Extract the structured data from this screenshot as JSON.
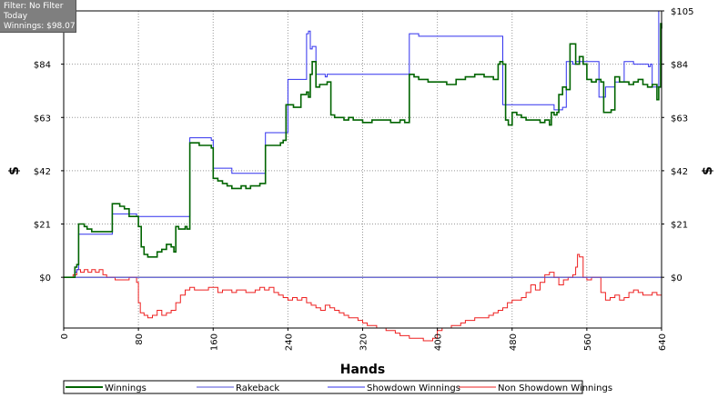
{
  "info": {
    "filter": "Filter: No Filter",
    "period": "Today",
    "winnings": "Winnings: $98.07"
  },
  "chart_data": {
    "type": "line",
    "xlabel": "Hands",
    "ylabel": "$",
    "ylabel_right": "$",
    "xlim": [
      0,
      640
    ],
    "ylim": [
      -20,
      105
    ],
    "grid": true,
    "legend_position": "bottom",
    "x_ticks": [
      0,
      80,
      160,
      240,
      320,
      400,
      480,
      560,
      640
    ],
    "x_tick_labels": [
      "0",
      "80",
      "160",
      "240",
      "320",
      "400",
      "480",
      "560",
      "640"
    ],
    "y_ticks": [
      0,
      21,
      42,
      63,
      84,
      105
    ],
    "y_tick_labels_left": [
      "$0",
      "$21",
      "$42",
      "$63",
      "$84",
      ""
    ],
    "y_tick_labels_right": [
      "$0",
      "$21",
      "$42",
      "$63",
      "$84",
      "$105"
    ],
    "colors": {
      "winnings": "#006400",
      "rakeback": "#4f4fd9",
      "showdown": "#3030ee",
      "non_showdown": "#ee2020",
      "zero_line": "#555555",
      "grid": "#999999"
    },
    "series": [
      {
        "name": "Winnings",
        "color": "#006400",
        "x": [
          0,
          12,
          14,
          16,
          18,
          22,
          25,
          30,
          35,
          40,
          45,
          49,
          52,
          56,
          60,
          65,
          70,
          75,
          78,
          80,
          83,
          86,
          90,
          95,
          100,
          105,
          110,
          115,
          118,
          120,
          123,
          126,
          130,
          132,
          135,
          140,
          145,
          150,
          155,
          158,
          160,
          165,
          170,
          175,
          180,
          185,
          190,
          195,
          200,
          205,
          210,
          214,
          216,
          220,
          224,
          228,
          232,
          235,
          238,
          242,
          246,
          250,
          254,
          257,
          260,
          262,
          264,
          266,
          270,
          274,
          278,
          282,
          286,
          290,
          295,
          300,
          305,
          310,
          320,
          330,
          340,
          350,
          360,
          365,
          368,
          370,
          375,
          380,
          390,
          400,
          410,
          420,
          430,
          440,
          450,
          460,
          463,
          465,
          467,
          470,
          473,
          476,
          480,
          485,
          490,
          495,
          500,
          505,
          510,
          515,
          520,
          522,
          525,
          528,
          530,
          534,
          538,
          542,
          545,
          548,
          552,
          556,
          560,
          565,
          570,
          575,
          578,
          582,
          586,
          590,
          595,
          600,
          605,
          610,
          615,
          620,
          625,
          630,
          635,
          637,
          639,
          640
        ],
        "values": [
          0,
          4,
          5,
          21,
          21,
          20,
          19,
          18,
          18,
          18,
          18,
          18,
          29,
          29,
          28,
          27,
          24,
          24,
          24,
          20,
          12,
          9,
          8,
          8,
          10,
          11,
          13,
          12,
          10,
          20,
          19,
          19,
          20,
          19,
          53,
          53,
          52,
          52,
          52,
          51,
          39,
          38,
          37,
          36,
          35,
          35,
          36,
          35,
          36,
          36,
          37,
          37,
          52,
          52,
          52,
          52,
          53,
          54,
          68,
          68,
          67,
          67,
          72,
          72,
          73,
          71,
          80,
          85,
          75,
          76,
          76,
          77,
          64,
          63,
          63,
          62,
          63,
          62,
          61,
          62,
          62,
          61,
          62,
          61,
          61,
          80,
          79,
          78,
          77,
          77,
          76,
          78,
          79,
          80,
          79,
          78,
          78,
          84,
          85,
          84,
          62,
          60,
          65,
          64,
          63,
          62,
          62,
          62,
          61,
          62,
          60,
          65,
          64,
          65,
          72,
          75,
          74,
          92,
          92,
          84,
          87,
          84,
          78,
          77,
          78,
          77,
          65,
          65,
          66,
          79,
          77,
          77,
          76,
          77,
          78,
          76,
          75,
          76,
          70,
          75,
          100,
          98
        ]
      },
      {
        "name": "Rakeback",
        "color": "#4f4fd9",
        "x": [
          0,
          640
        ],
        "values": [
          0,
          0
        ]
      },
      {
        "name": "Showdown Winnings",
        "color": "#3030ee",
        "x": [
          0,
          12,
          14,
          16,
          18,
          50,
          52,
          54,
          78,
          80,
          120,
          126,
          130,
          132,
          135,
          155,
          158,
          160,
          178,
          180,
          210,
          214,
          216,
          234,
          236,
          240,
          250,
          254,
          260,
          262,
          264,
          266,
          270,
          272,
          280,
          282,
          286,
          300,
          310,
          360,
          365,
          368,
          370,
          380,
          400,
          420,
          440,
          460,
          465,
          470,
          474,
          500,
          505,
          520,
          525,
          530,
          534,
          538,
          542,
          545,
          548,
          552,
          560,
          570,
          573,
          575,
          580,
          590,
          600,
          610,
          613,
          620,
          626,
          628,
          630,
          634,
          637,
          640
        ],
        "values": [
          0,
          2,
          3,
          17,
          17,
          17,
          25,
          25,
          24,
          24,
          24,
          24,
          24,
          24,
          55,
          55,
          54,
          43,
          43,
          41,
          41,
          41,
          57,
          57,
          57,
          78,
          78,
          78,
          96,
          97,
          90,
          91,
          80,
          80,
          79,
          80,
          80,
          80,
          80,
          80,
          80,
          80,
          96,
          95,
          95,
          95,
          95,
          95,
          95,
          68,
          68,
          68,
          68,
          68,
          66,
          66,
          67,
          85,
          85,
          84,
          85,
          85,
          85,
          85,
          71,
          71,
          75,
          77,
          85,
          84,
          84,
          84,
          83,
          84,
          75,
          75,
          105,
          104
        ]
      },
      {
        "name": "Non Showdown Winnings",
        "color": "#ee2020",
        "x": [
          0,
          10,
          14,
          18,
          22,
          26,
          30,
          34,
          38,
          42,
          46,
          50,
          55,
          60,
          65,
          70,
          75,
          78,
          80,
          82,
          86,
          90,
          95,
          100,
          105,
          110,
          115,
          120,
          125,
          130,
          135,
          140,
          145,
          150,
          155,
          160,
          165,
          170,
          175,
          180,
          185,
          190,
          195,
          200,
          205,
          210,
          215,
          220,
          225,
          230,
          235,
          240,
          245,
          250,
          255,
          260,
          265,
          270,
          275,
          280,
          285,
          290,
          295,
          300,
          305,
          310,
          315,
          320,
          325,
          330,
          335,
          340,
          345,
          350,
          355,
          360,
          365,
          370,
          375,
          380,
          385,
          390,
          395,
          400,
          405,
          410,
          415,
          420,
          425,
          430,
          435,
          440,
          445,
          450,
          455,
          460,
          465,
          470,
          475,
          480,
          485,
          490,
          495,
          500,
          505,
          510,
          515,
          520,
          525,
          530,
          535,
          540,
          545,
          548,
          550,
          552,
          556,
          560,
          565,
          570,
          575,
          580,
          585,
          590,
          595,
          600,
          605,
          610,
          615,
          620,
          625,
          630,
          635,
          640
        ],
        "values": [
          0,
          1,
          3,
          2,
          3,
          2,
          3,
          2,
          3,
          1,
          0,
          0,
          -1,
          -1,
          -1,
          0,
          0,
          -2,
          -10,
          -14,
          -15,
          -16,
          -15,
          -13,
          -15,
          -14,
          -13,
          -10,
          -7,
          -5,
          -4,
          -5,
          -5,
          -5,
          -4,
          -4,
          -6,
          -5,
          -5,
          -6,
          -5,
          -5,
          -6,
          -6,
          -5,
          -4,
          -5,
          -4,
          -6,
          -7,
          -8,
          -9,
          -8,
          -9,
          -8,
          -10,
          -11,
          -12,
          -13,
          -11,
          -12,
          -13,
          -14,
          -15,
          -16,
          -16,
          -17,
          -18,
          -19,
          -19,
          -20,
          -20,
          -21,
          -21,
          -22,
          -23,
          -23,
          -24,
          -24,
          -24,
          -25,
          -25,
          -24,
          -21,
          -20,
          -20,
          -19,
          -19,
          -18,
          -17,
          -17,
          -16,
          -16,
          -16,
          -15,
          -14,
          -13,
          -12,
          -10,
          -9,
          -9,
          -8,
          -6,
          -3,
          -5,
          -2,
          1,
          2,
          0,
          -3,
          -1,
          0,
          1,
          4,
          9,
          8,
          0,
          -1,
          0,
          0,
          -6,
          -9,
          -8,
          -7,
          -9,
          -8,
          -6,
          -5,
          -6,
          -7,
          -7,
          -6,
          -7,
          -6
        ]
      }
    ]
  },
  "legend": [
    {
      "label": "Winnings",
      "color": "#006400"
    },
    {
      "label": "Rakeback",
      "color": "#4f4fd9"
    },
    {
      "label": "Showdown Winnings",
      "color": "#3030ee"
    },
    {
      "label": "Non Showdown Winnings",
      "color": "#ee2020"
    }
  ]
}
